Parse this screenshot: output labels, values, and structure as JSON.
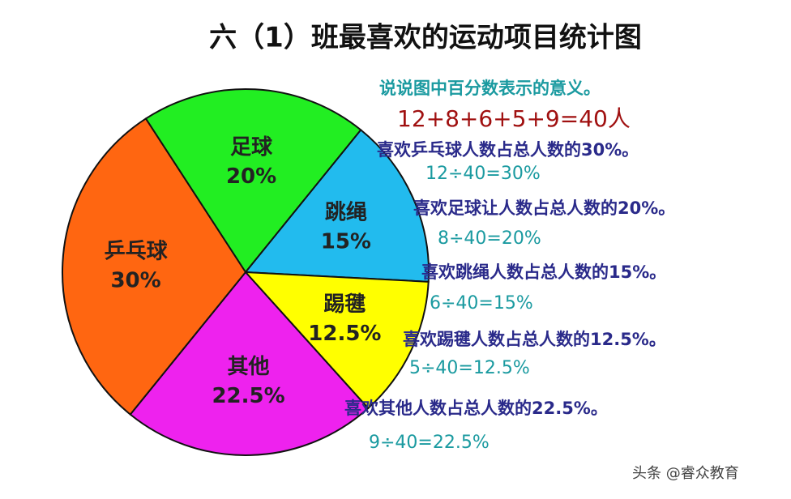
{
  "chart_data": {
    "type": "pie",
    "title": "六（1）班最喜欢的运动项目统计图",
    "categories": [
      "足球",
      "跳绳",
      "踢毽",
      "其他",
      "乒乓球"
    ],
    "values": [
      20,
      15,
      12.5,
      22.5,
      30
    ],
    "value_labels": [
      "20%",
      "15%",
      "12.5%",
      "22.5%",
      "30%"
    ],
    "colors": [
      "#22ee22",
      "#22bbee",
      "#ffff00",
      "#ee22ee",
      "#ff6611"
    ]
  },
  "annotations": [
    "说说图中百分数表示的意义。",
    "12+8+6+5+9=40人",
    "喜欢乒乓球人数占总人数的30%。",
    "12÷40=30%",
    "喜欢足球让人数占总人数的20%。",
    "8÷40=20%",
    "喜欢跳绳人数占总人数的15%。",
    "6÷40=15%",
    "喜欢踢毽人数占总人数的12.5%。",
    "5÷40=12.5%",
    "喜欢其他人数占总人数的22.5%。",
    "9÷40=22.5%"
  ],
  "watermark": "头条 @睿众教育"
}
